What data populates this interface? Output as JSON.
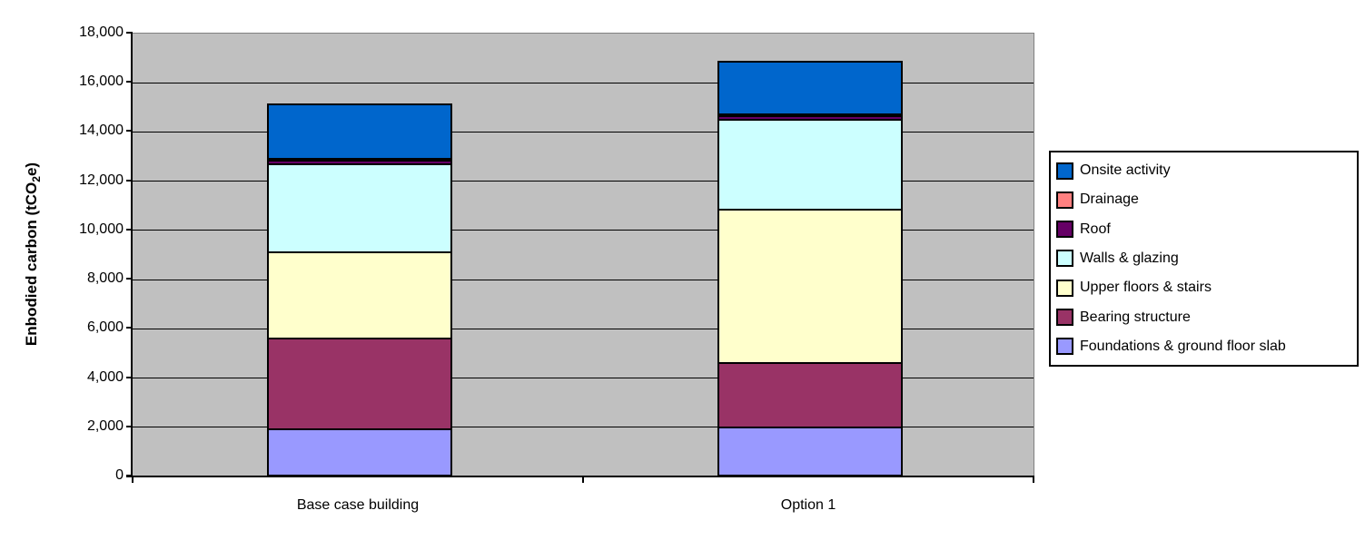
{
  "chart_data": {
    "type": "bar",
    "stacked": true,
    "ylabel_pre": "Enbodied carbon (tCO",
    "ylabel_sub": "2",
    "ylabel_post": "e)",
    "categories": [
      "Base case building",
      "Option 1"
    ],
    "series": [
      {
        "name": "Foundations & ground floor slab",
        "color": "#9999FF",
        "values": [
          1800,
          1900
        ]
      },
      {
        "name": "Bearing structure",
        "color": "#993366",
        "values": [
          3700,
          2600
        ]
      },
      {
        "name": "Upper floors & stairs",
        "color": "#FFFFCC",
        "values": [
          3500,
          6250
        ]
      },
      {
        "name": "Walls & glazing",
        "color": "#CCFFFF",
        "values": [
          3600,
          3650
        ]
      },
      {
        "name": "Roof",
        "color": "#660066",
        "values": [
          150,
          150
        ]
      },
      {
        "name": "Drainage",
        "color": "#FF8080",
        "values": [
          50,
          50
        ]
      },
      {
        "name": "Onsite activity",
        "color": "#0066CC",
        "values": [
          2200,
          2150
        ]
      }
    ],
    "totals": [
      15000,
      16750
    ],
    "ylim": [
      0,
      18000
    ],
    "ytick_step": 2000,
    "yticks": [
      "0",
      "2,000",
      "4,000",
      "6,000",
      "8,000",
      "10,000",
      "12,000",
      "14,000",
      "16,000",
      "18,000"
    ],
    "grid": true,
    "legend_position": "right",
    "legend_order": [
      "Onsite activity",
      "Drainage",
      "Roof",
      "Walls & glazing",
      "Upper floors & stairs",
      "Bearing structure",
      "Foundations & ground floor slab"
    ],
    "plot_bg": "#C0C0C0"
  }
}
